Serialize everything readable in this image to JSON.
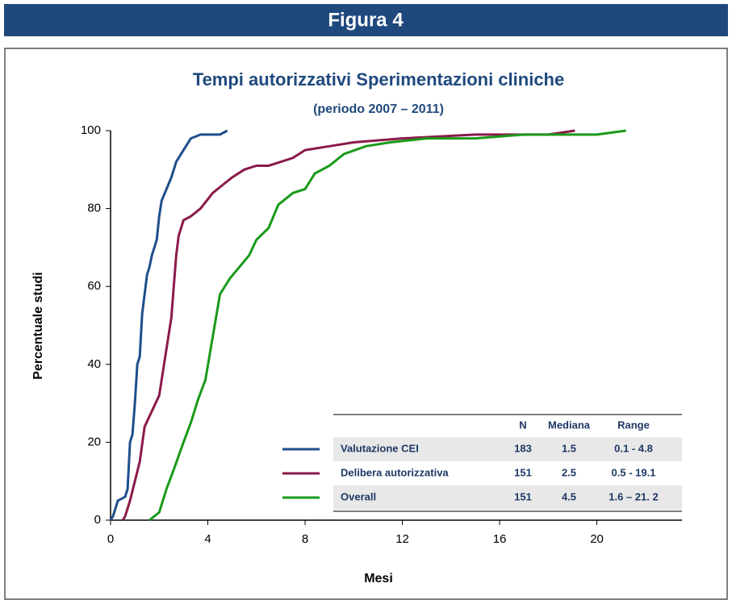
{
  "header": {
    "title": "Figura 4"
  },
  "chart_data": {
    "type": "line",
    "title": "Tempi autorizzativi Sperimentazioni cliniche",
    "subtitle": "(periodo 2007 – 2011)",
    "x_label": "Mesi",
    "y_label": "Percentuale studi",
    "xlim": [
      0,
      23.5
    ],
    "ylim": [
      0,
      100
    ],
    "xticks": [
      0,
      4,
      8,
      12,
      16,
      20
    ],
    "yticks": [
      0,
      20,
      40,
      60,
      80,
      100
    ],
    "series": [
      {
        "name": "Valutazione CEI",
        "color": "#1f4e8c",
        "x": [
          0,
          0.1,
          0.3,
          0.6,
          0.7,
          0.8,
          0.9,
          1.0,
          1.1,
          1.2,
          1.3,
          1.4,
          1.5,
          1.6,
          1.7,
          1.8,
          1.9,
          2.0,
          2.1,
          2.3,
          2.5,
          2.7,
          2.9,
          3.1,
          3.3,
          3.7,
          4.5,
          4.8
        ],
        "values": [
          0,
          1,
          5,
          6,
          8,
          20,
          22,
          30,
          40,
          42,
          53,
          58,
          63,
          65,
          68,
          70,
          72,
          78,
          82,
          85,
          88,
          92,
          94,
          96,
          98,
          99,
          99,
          100
        ]
      },
      {
        "name": "Delibera autorizzativa",
        "color": "#8b1a4a",
        "x": [
          0.5,
          0.6,
          0.8,
          1.0,
          1.2,
          1.4,
          1.7,
          2.0,
          2.2,
          2.4,
          2.5,
          2.6,
          2.7,
          2.8,
          3.0,
          3.3,
          3.7,
          4.2,
          4.6,
          5.0,
          5.5,
          6.0,
          6.5,
          7.0,
          7.5,
          8.0,
          9.0,
          10,
          12,
          15,
          18,
          19.1
        ],
        "values": [
          0,
          1,
          5,
          10,
          15,
          24,
          28,
          32,
          40,
          48,
          52,
          60,
          68,
          73,
          77,
          78,
          80,
          84,
          86,
          88,
          90,
          91,
          91,
          92,
          93,
          95,
          96,
          97,
          98,
          99,
          99,
          100
        ]
      },
      {
        "name": "Overall",
        "color": "#1a9a1a",
        "x": [
          1.6,
          2.0,
          2.3,
          2.6,
          3.0,
          3.3,
          3.6,
          3.9,
          4.2,
          4.5,
          4.9,
          5.3,
          5.7,
          6.0,
          6.5,
          6.9,
          7.5,
          8.0,
          8.4,
          9.0,
          9.6,
          10.5,
          11.5,
          13,
          15,
          17,
          20,
          21.2
        ],
        "values": [
          0,
          2,
          8,
          13,
          20,
          25,
          31,
          36,
          47,
          58,
          62,
          65,
          68,
          72,
          75,
          81,
          84,
          85,
          89,
          91,
          94,
          96,
          97,
          98,
          98,
          99,
          99,
          100
        ]
      }
    ],
    "summary_table": {
      "columns": [
        "N",
        "Mediana",
        "Range"
      ],
      "rows": [
        [
          183,
          1.5,
          "0.1 - 4.8"
        ],
        [
          151,
          2.5,
          "0.5 - 19.1"
        ],
        [
          151,
          4.5,
          "1.6 – 21. 2"
        ]
      ]
    }
  }
}
